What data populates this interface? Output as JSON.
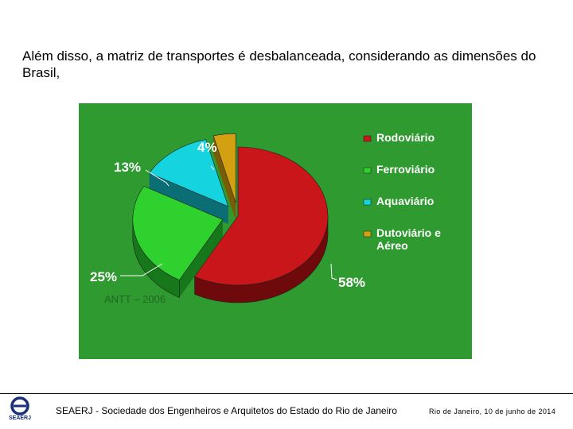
{
  "slide": {
    "heading": "Além disso, a matriz de transportes é desbalanceada, considerando as dimensões do Brasil,"
  },
  "chart_data": {
    "type": "pie",
    "style": "3d-exploded",
    "background_color": "#2e9a30",
    "categories": [
      "Rodoviário",
      "Ferroviário",
      "Aquaviário",
      "Dutoviário e Aéreo"
    ],
    "values": [
      58,
      25,
      13,
      4
    ],
    "value_labels": [
      "58%",
      "25%",
      "13%",
      "4%"
    ],
    "colors": [
      "#c8161b",
      "#2ed12e",
      "#15d4e0",
      "#d2a011"
    ],
    "side_colors": [
      "#6e0a0c",
      "#16781a",
      "#0a6e74",
      "#7a5c06"
    ],
    "legend_entries": [
      "Rodoviário",
      "Ferroviário",
      "Aquaviário",
      "Dutoviário e Aéreo"
    ],
    "legend_lines": [
      [
        "Rodoviário"
      ],
      [
        "Ferroviário"
      ],
      [
        "Aquaviário"
      ],
      [
        "Dutoviário e",
        "Aéreo"
      ]
    ],
    "legend_placement": "right",
    "source_note": "ANTT – 2006"
  },
  "logo": {
    "text": "SEAERJ",
    "color": "#1a2f7a"
  },
  "footer": {
    "organization": "SEAERJ - Sociedade dos Engenheiros e Arquitetos do Estado do Rio de Janeiro",
    "date": "Rio de Janeiro, 10 de junho de 2014"
  }
}
